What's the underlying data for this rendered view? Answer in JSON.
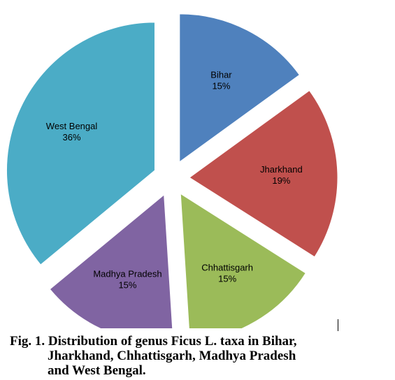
{
  "chart_data": {
    "type": "pie",
    "exploded": true,
    "slices": [
      {
        "label": "Bihar",
        "percent_label": "15%",
        "value": 15,
        "color": "#4f81bd"
      },
      {
        "label": "Jharkhand",
        "percent_label": "19%",
        "value": 19,
        "color": "#c0504d"
      },
      {
        "label": "Chhattisgarh",
        "percent_label": "15%",
        "value": 15,
        "color": "#9bbb59"
      },
      {
        "label": "Madhya Pradesh",
        "percent_label": "15%",
        "value": 15,
        "color": "#8064a2"
      },
      {
        "label": "West Bengal",
        "percent_label": "36%",
        "value": 36,
        "color": "#4bacc6"
      }
    ]
  },
  "caption": {
    "line1": "Fig. 1. Distribution of genus Ficus L. taxa in Bihar,",
    "line2": "Jharkhand, Chhattisgarh, Madhya Pradesh",
    "line3": "and West Bengal."
  }
}
